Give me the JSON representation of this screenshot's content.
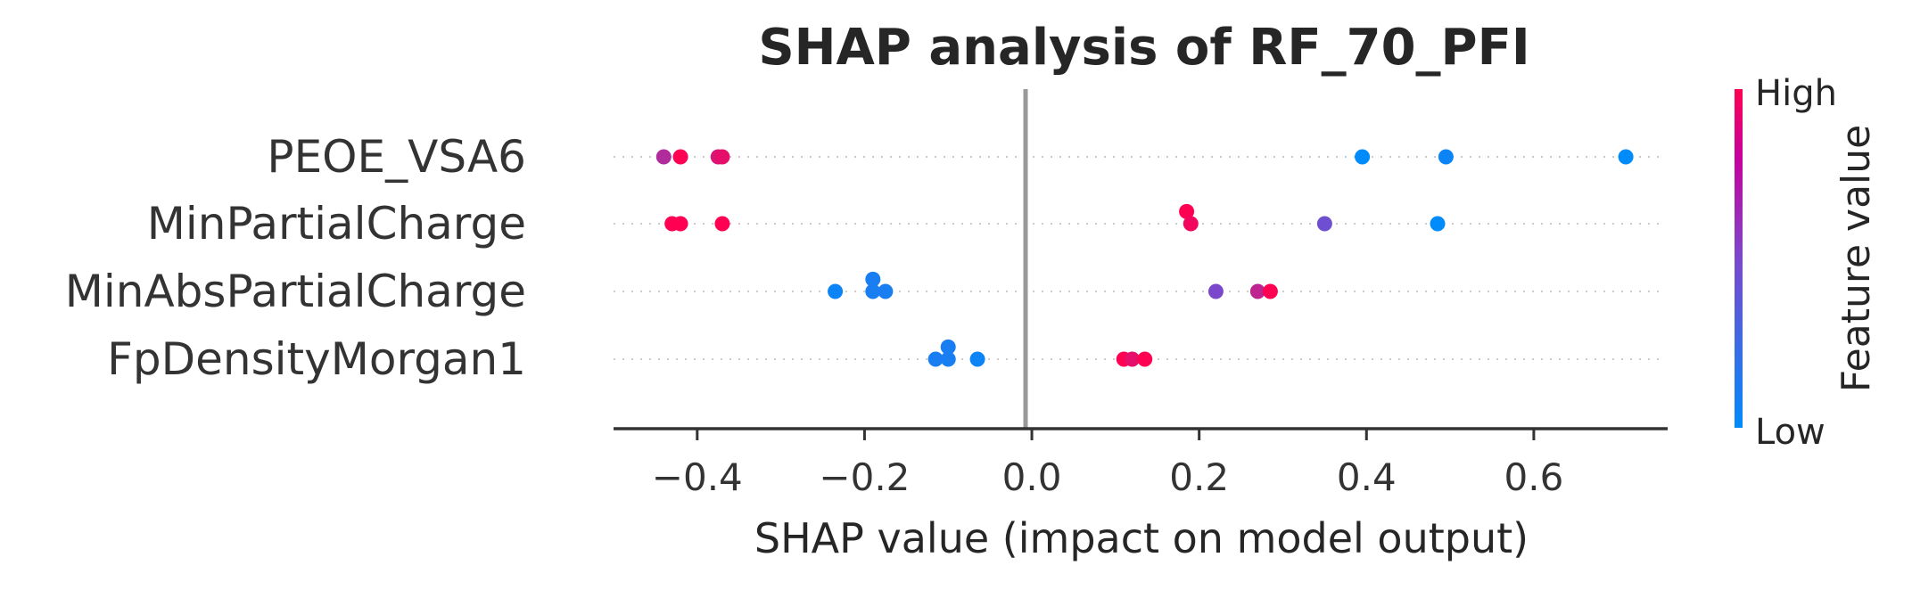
{
  "chart_data": {
    "type": "scatter",
    "title": "SHAP analysis of RF_70_PFI",
    "xlabel": "SHAP value (impact on model output)",
    "xlim": [
      -0.5,
      0.76
    ],
    "xticks": [
      -0.4,
      -0.2,
      0.0,
      0.2,
      0.4,
      0.6
    ],
    "xtick_labels": [
      "−0.4",
      "−0.2",
      "0.0",
      "0.2",
      "0.4",
      "0.6"
    ],
    "features": [
      "PEOE_VSA6",
      "MinPartialCharge",
      "MinAbsPartialCharge",
      "FpDensityMorgan1"
    ],
    "colorbar": {
      "title": "Feature value",
      "high_label": "High",
      "low_label": "Low",
      "low_color": "#008bfb",
      "high_color": "#ff0052"
    },
    "series": [
      {
        "feature": "PEOE_VSA6",
        "points": [
          {
            "x": -0.44,
            "v": 0.7,
            "o": 0
          },
          {
            "x": -0.42,
            "v": 1.0,
            "o": 0
          },
          {
            "x": -0.375,
            "v": 0.85,
            "o": 0
          },
          {
            "x": -0.37,
            "v": 0.9,
            "o": 0
          },
          {
            "x": 0.395,
            "v": 0.0,
            "o": 0
          },
          {
            "x": 0.495,
            "v": 0.05,
            "o": 0
          },
          {
            "x": 0.71,
            "v": 0.0,
            "o": 0
          }
        ]
      },
      {
        "feature": "MinPartialCharge",
        "points": [
          {
            "x": -0.43,
            "v": 1.0,
            "o": 0
          },
          {
            "x": -0.42,
            "v": 1.0,
            "o": 0
          },
          {
            "x": -0.37,
            "v": 1.0,
            "o": 0
          },
          {
            "x": 0.185,
            "v": 1.0,
            "o": -0.18
          },
          {
            "x": 0.19,
            "v": 0.95,
            "o": 0
          },
          {
            "x": 0.35,
            "v": 0.45,
            "o": 0
          },
          {
            "x": 0.485,
            "v": 0.0,
            "o": 0
          }
        ]
      },
      {
        "feature": "MinAbsPartialCharge",
        "points": [
          {
            "x": -0.235,
            "v": 0.05,
            "o": 0
          },
          {
            "x": -0.19,
            "v": 0.1,
            "o": -0.18
          },
          {
            "x": -0.19,
            "v": 0.1,
            "o": 0
          },
          {
            "x": -0.175,
            "v": 0.1,
            "o": 0
          },
          {
            "x": 0.22,
            "v": 0.5,
            "o": 0
          },
          {
            "x": 0.27,
            "v": 0.75,
            "o": 0
          },
          {
            "x": 0.285,
            "v": 1.0,
            "o": 0
          }
        ]
      },
      {
        "feature": "FpDensityMorgan1",
        "points": [
          {
            "x": -0.115,
            "v": 0.1,
            "o": 0
          },
          {
            "x": -0.1,
            "v": 0.1,
            "o": -0.18
          },
          {
            "x": -0.1,
            "v": 0.1,
            "o": 0
          },
          {
            "x": -0.065,
            "v": 0.05,
            "o": 0
          },
          {
            "x": 0.11,
            "v": 1.0,
            "o": 0
          },
          {
            "x": 0.12,
            "v": 0.9,
            "o": 0
          },
          {
            "x": 0.135,
            "v": 1.0,
            "o": 0
          }
        ]
      }
    ]
  }
}
